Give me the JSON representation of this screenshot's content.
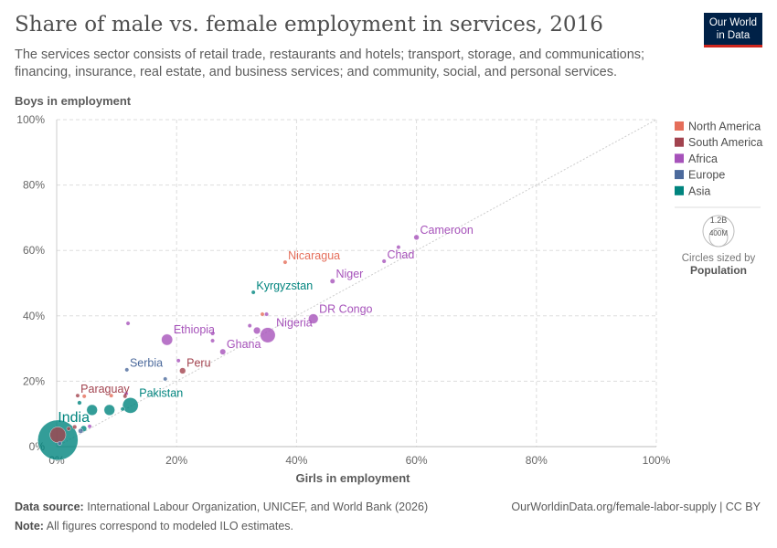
{
  "header": {
    "title": "Share of male vs. female employment in services, 2016",
    "subtitle": "The services sector consists of retail trade, restaurants and hotels; transport, storage, and communications; financing, insurance, real estate, and business services; and community, social, and personal services.",
    "logo": "Our World in Data"
  },
  "chart_data": {
    "type": "scatter",
    "xlabel": "Girls in employment",
    "ylabel": "Boys in employment",
    "xlim": [
      0,
      100
    ],
    "ylim": [
      0,
      100
    ],
    "xticks": [
      "0%",
      "20%",
      "40%",
      "60%",
      "80%",
      "100%"
    ],
    "yticks": [
      "0%",
      "20%",
      "40%",
      "60%",
      "80%",
      "100%"
    ],
    "grid": true,
    "reference_line": "y = x",
    "legend_position": "right",
    "legend": [
      {
        "name": "North America",
        "color": "#e56e5a"
      },
      {
        "name": "South America",
        "color": "#a2434f"
      },
      {
        "name": "Africa",
        "color": "#a652ba"
      },
      {
        "name": "Europe",
        "color": "#4c6a9c"
      },
      {
        "name": "Asia",
        "color": "#00847e"
      }
    ],
    "size_legend": {
      "labels": [
        "1.2B",
        "400M"
      ],
      "caption": "Circles sized by",
      "variable": "Population"
    },
    "points": [
      {
        "label": "Cameroon",
        "region": "Africa",
        "x": 60,
        "y": 64,
        "pop": 23
      },
      {
        "label": "Chad",
        "region": "Africa",
        "x": 54.6,
        "y": 56.7,
        "pop": 14
      },
      {
        "label": "",
        "region": "Africa",
        "x": 57,
        "y": 61,
        "pop": 5
      },
      {
        "label": "Nicaragua",
        "region": "North America",
        "x": 38.1,
        "y": 56.4,
        "pop": 6
      },
      {
        "label": "Niger",
        "region": "Africa",
        "x": 46,
        "y": 50.6,
        "pop": 20
      },
      {
        "label": "Kyrgyzstan",
        "region": "Asia",
        "x": 32.8,
        "y": 47.2,
        "pop": 6
      },
      {
        "label": "DR Congo",
        "region": "Africa",
        "x": 42.8,
        "y": 39.1,
        "pop": 79
      },
      {
        "label": "Nigeria",
        "region": "Africa",
        "x": 35.2,
        "y": 34.1,
        "pop": 186
      },
      {
        "label": "",
        "region": "North America",
        "x": 34.3,
        "y": 40.5,
        "pop": 5
      },
      {
        "label": "",
        "region": "Africa",
        "x": 35,
        "y": 40.5,
        "pop": 5
      },
      {
        "label": "",
        "region": "Africa",
        "x": 32.2,
        "y": 37,
        "pop": 5
      },
      {
        "label": "",
        "region": "Africa",
        "x": 33.4,
        "y": 35.5,
        "pop": 40
      },
      {
        "label": "Ethiopia",
        "region": "Africa",
        "x": 18.4,
        "y": 32.7,
        "pop": 103
      },
      {
        "label": "Ghana",
        "region": "Africa",
        "x": 27.7,
        "y": 29,
        "pop": 28
      },
      {
        "label": "",
        "region": "Africa",
        "x": 26,
        "y": 34.6,
        "pop": 10
      },
      {
        "label": "",
        "region": "Africa",
        "x": 26,
        "y": 32.4,
        "pop": 10
      },
      {
        "label": "",
        "region": "Africa",
        "x": 11.9,
        "y": 37.7,
        "pop": 5
      },
      {
        "label": "Serbia",
        "region": "Europe",
        "x": 11.7,
        "y": 23.5,
        "pop": 7
      },
      {
        "label": "Peru",
        "region": "South America",
        "x": 21,
        "y": 23.2,
        "pop": 31
      },
      {
        "label": "",
        "region": "Africa",
        "x": 20.3,
        "y": 26.3,
        "pop": 5
      },
      {
        "label": "",
        "region": "Europe",
        "x": 18.1,
        "y": 20.7,
        "pop": 5
      },
      {
        "label": "Paraguay",
        "region": "South America",
        "x": 3.5,
        "y": 15.6,
        "pop": 7
      },
      {
        "label": "",
        "region": "North America",
        "x": 4.6,
        "y": 15.4,
        "pop": 5
      },
      {
        "label": "",
        "region": "North America",
        "x": 9.1,
        "y": 15.6,
        "pop": 5
      },
      {
        "label": "",
        "region": "Africa",
        "x": 11.6,
        "y": 16.2,
        "pop": 5
      },
      {
        "label": "",
        "region": "South America",
        "x": 11.4,
        "y": 15.4,
        "pop": 5
      },
      {
        "label": "Pakistan",
        "region": "Asia",
        "x": 12.3,
        "y": 12.6,
        "pop": 200
      },
      {
        "label": "",
        "region": "Asia",
        "x": 8.8,
        "y": 11.2,
        "pop": 95
      },
      {
        "label": "",
        "region": "Asia",
        "x": 5.9,
        "y": 11.2,
        "pop": 95
      },
      {
        "label": "",
        "region": "Asia",
        "x": 3.8,
        "y": 13.4,
        "pop": 15
      },
      {
        "label": "",
        "region": "Asia",
        "x": 11,
        "y": 11.5,
        "pop": 5
      },
      {
        "label": "",
        "region": "South America",
        "x": 2,
        "y": 5.5,
        "pop": 12
      },
      {
        "label": "",
        "region": "South America",
        "x": 3,
        "y": 6,
        "pop": 15
      },
      {
        "label": "",
        "region": "Asia",
        "x": 4.5,
        "y": 5.5,
        "pop": 30
      },
      {
        "label": "",
        "region": "Europe",
        "x": 4,
        "y": 4.8,
        "pop": 20
      },
      {
        "label": "",
        "region": "Africa",
        "x": 5.5,
        "y": 6.2,
        "pop": 8
      },
      {
        "label": "",
        "region": "Europe",
        "x": 0.5,
        "y": 1,
        "pop": 5
      },
      {
        "label": "India",
        "region": "Asia",
        "x": 0.2,
        "y": 2,
        "pop": 1324
      },
      {
        "label": "",
        "region": "South America",
        "x": 0.2,
        "y": 3.6,
        "pop": 206
      }
    ]
  },
  "footer": {
    "source_label": "Data source:",
    "source": "International Labour Organization, UNICEF, and World Bank (2026)",
    "url": "OurWorldinData.org/female-labor-supply | CC BY",
    "note_label": "Note:",
    "note": "All figures correspond to modeled ILO estimates."
  }
}
